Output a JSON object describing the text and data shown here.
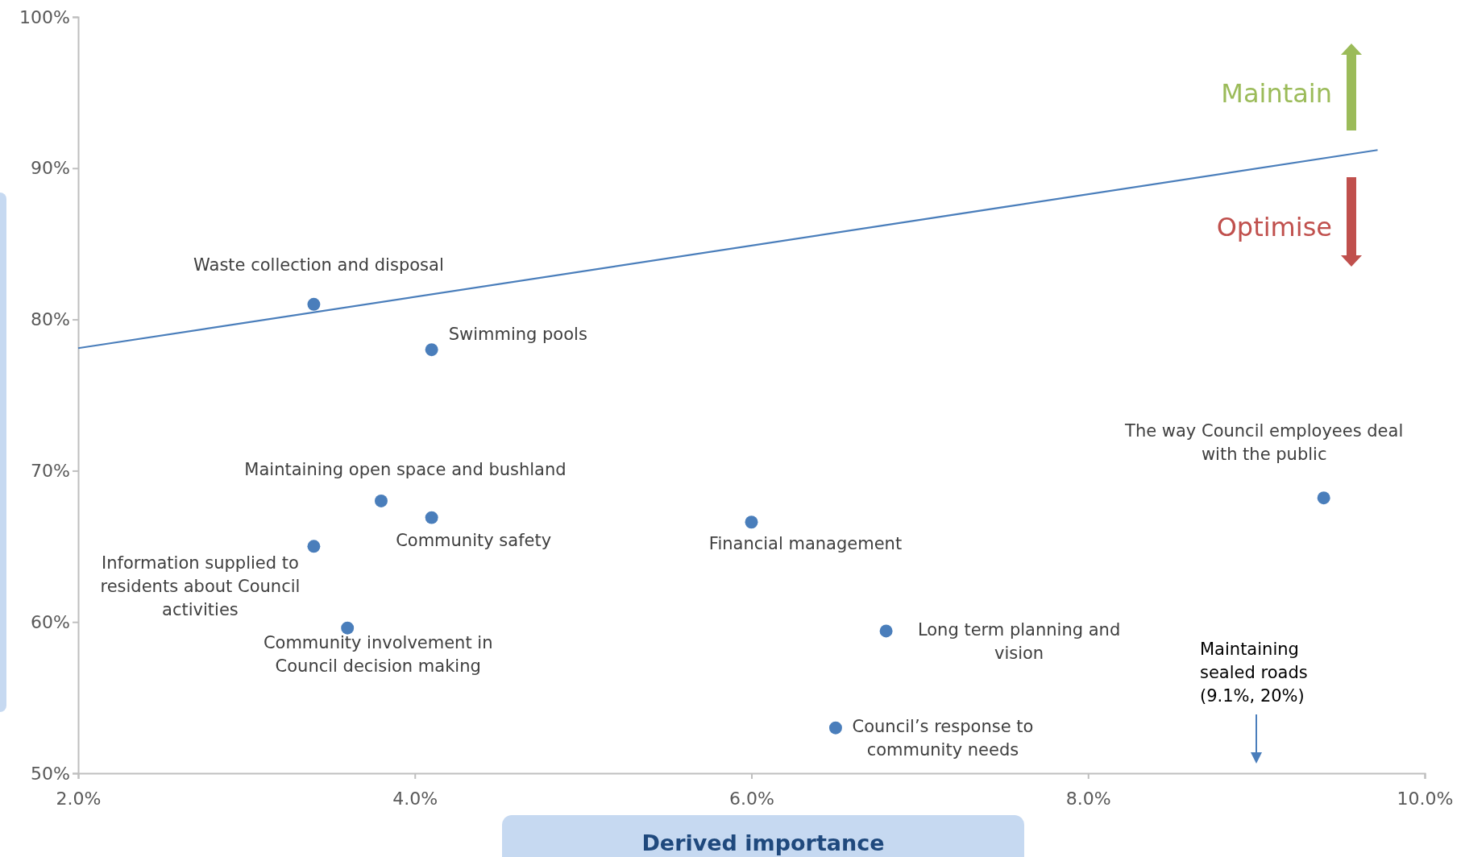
{
  "chart_data": {
    "type": "scatter",
    "xlabel": "Derived importance",
    "xlim": [
      2,
      10
    ],
    "xticks": [
      {
        "value": 2,
        "label": "2.0%"
      },
      {
        "value": 4,
        "label": "4.0%"
      },
      {
        "value": 6,
        "label": "6.0%"
      },
      {
        "value": 8,
        "label": "8.0%"
      },
      {
        "value": 10,
        "label": "10.0%"
      }
    ],
    "ylim": [
      50,
      100
    ],
    "yticks": [
      {
        "value": 50,
        "label": "50%"
      },
      {
        "value": 60,
        "label": "60%"
      },
      {
        "value": 70,
        "label": "70%"
      },
      {
        "value": 80,
        "label": "80%"
      },
      {
        "value": 90,
        "label": "90%"
      },
      {
        "value": 100,
        "label": "100%"
      }
    ],
    "grid": false,
    "series": [
      {
        "marker": "circle",
        "color": "#4a7ebb",
        "x": [
          3.4,
          4.1,
          3.8,
          4.1,
          3.4,
          3.6,
          6.0,
          6.8,
          6.5,
          9.4
        ],
        "values": [
          81.0,
          78.0,
          68.0,
          66.9,
          65.0,
          59.6,
          66.6,
          59.4,
          53.0,
          68.2
        ]
      },
      {
        "type": "line",
        "color": "#4a7ebb",
        "line_style": "solid",
        "x": [
          2,
          9.72
        ],
        "values": [
          78.1,
          91.2
        ]
      }
    ],
    "annotations": [
      {
        "text": "Waste collection and disposal",
        "x": 3.4,
        "y": 81.0
      },
      {
        "text": "Swimming pools",
        "x": 4.1,
        "y": 78.0
      },
      {
        "text": "Maintaining open space and bushland",
        "x": 3.8,
        "y": 68.0
      },
      {
        "text": "Community safety",
        "x": 4.1,
        "y": 66.9
      },
      {
        "text": "Information supplied to residents about Council activities",
        "x": 3.4,
        "y": 65.0
      },
      {
        "text": "Community involvement in Council decision making",
        "x": 3.6,
        "y": 59.6
      },
      {
        "text": "Financial management",
        "x": 6.0,
        "y": 66.6
      },
      {
        "text": "Long term planning and vision",
        "x": 6.8,
        "y": 59.4
      },
      {
        "text": "Council’s response to community needs",
        "x": 6.5,
        "y": 53.0
      },
      {
        "text": "The way Council employees deal with the public",
        "x": 9.4,
        "y": 68.2
      },
      "Maintaining sealed roads (9.1%, 20%)",
      "Maintain",
      "Optimise"
    ]
  }
}
